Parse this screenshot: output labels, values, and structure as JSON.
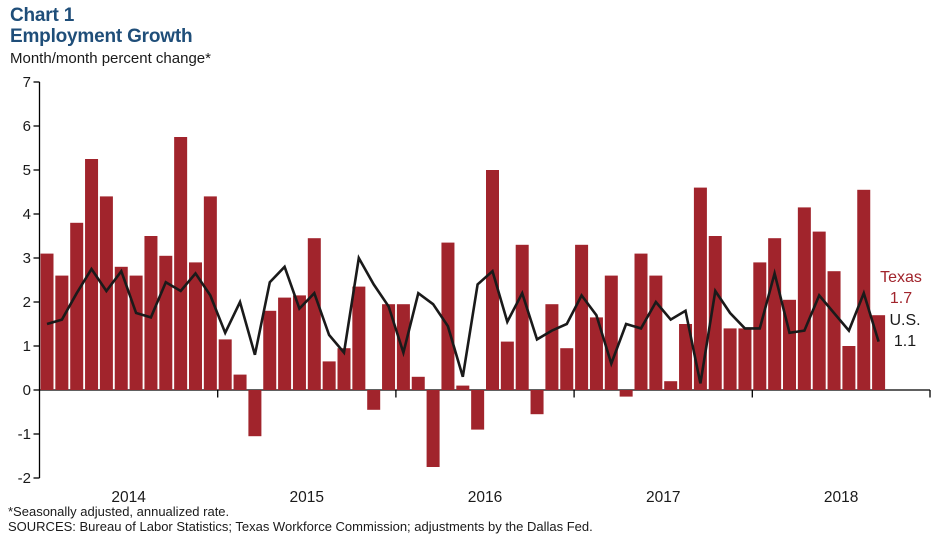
{
  "header": {
    "chart_label": "Chart 1",
    "title": "Employment Growth",
    "subtitle": "Month/month percent change*"
  },
  "colors": {
    "title_blue": "#1F4E79",
    "texas_red": "#A1242C",
    "us_black": "#1A1A1A",
    "axis": "#000000"
  },
  "chart_data": {
    "type": "bar",
    "note": "bars = Texas monthly annualized % change; black line = U.S.",
    "months": [
      "2014-01",
      "2014-02",
      "2014-03",
      "2014-04",
      "2014-05",
      "2014-06",
      "2014-07",
      "2014-08",
      "2014-09",
      "2014-10",
      "2014-11",
      "2014-12",
      "2015-01",
      "2015-02",
      "2015-03",
      "2015-04",
      "2015-05",
      "2015-06",
      "2015-07",
      "2015-08",
      "2015-09",
      "2015-10",
      "2015-11",
      "2015-12",
      "2016-01",
      "2016-02",
      "2016-03",
      "2016-04",
      "2016-05",
      "2016-06",
      "2016-07",
      "2016-08",
      "2016-09",
      "2016-10",
      "2016-11",
      "2016-12",
      "2017-01",
      "2017-02",
      "2017-03",
      "2017-04",
      "2017-05",
      "2017-06",
      "2017-07",
      "2017-08",
      "2017-09",
      "2017-10",
      "2017-11",
      "2017-12",
      "2018-01",
      "2018-02",
      "2018-03",
      "2018-04",
      "2018-05",
      "2018-06",
      "2018-07",
      "2018-08",
      "2018-09"
    ],
    "series": [
      {
        "name": "Texas",
        "type": "bar",
        "color": "#A1242C",
        "values": [
          3.1,
          2.6,
          3.8,
          5.25,
          4.4,
          2.8,
          2.6,
          3.5,
          3.05,
          5.75,
          2.9,
          4.4,
          1.15,
          0.35,
          -1.05,
          1.8,
          2.1,
          2.15,
          3.45,
          0.65,
          0.95,
          2.35,
          -0.45,
          1.95,
          1.95,
          0.3,
          -1.75,
          3.35,
          0.1,
          -0.9,
          5.0,
          1.1,
          3.3,
          -0.55,
          1.95,
          0.95,
          3.3,
          1.65,
          2.6,
          -0.15,
          3.1,
          2.6,
          0.2,
          1.5,
          4.6,
          3.5,
          1.4,
          1.4,
          2.9,
          3.45,
          2.05,
          4.15,
          3.6,
          2.7,
          1.0,
          4.55,
          1.7
        ]
      },
      {
        "name": "U.S.",
        "type": "line",
        "color": "#1A1A1A",
        "values": [
          1.5,
          1.6,
          2.2,
          2.75,
          2.25,
          2.7,
          1.75,
          1.65,
          2.45,
          2.25,
          2.65,
          2.15,
          1.3,
          2.0,
          0.8,
          2.45,
          2.8,
          1.85,
          2.2,
          1.25,
          0.85,
          3.0,
          2.4,
          1.9,
          0.85,
          2.2,
          1.95,
          1.45,
          0.3,
          2.4,
          2.7,
          1.55,
          2.2,
          1.15,
          1.35,
          1.5,
          2.15,
          1.7,
          0.6,
          1.5,
          1.4,
          2.0,
          1.6,
          1.8,
          0.15,
          2.25,
          1.75,
          1.4,
          1.4,
          2.65,
          1.3,
          1.35,
          2.15,
          1.75,
          1.35,
          2.2,
          1.1
        ]
      }
    ],
    "xlabel": "",
    "ylabel": "",
    "ylim": [
      -2,
      7
    ],
    "ytick_step": 1,
    "yticks": [
      "7",
      "6",
      "5",
      "4",
      "3",
      "2",
      "1",
      "0",
      "-1",
      "-2"
    ],
    "x_tick_labels": [
      "2014",
      "2015",
      "2016",
      "2017",
      "2018"
    ],
    "grid": "off",
    "legend_position": "right-annotations",
    "annotations": {
      "texas": {
        "label": "Texas",
        "value": "1.7"
      },
      "us": {
        "label": "U.S.",
        "value": "1.1"
      }
    }
  },
  "footer": {
    "note": "*Seasonally adjusted, annualized rate.",
    "sources": "SOURCES: Bureau of Labor Statistics; Texas Workforce Commission; adjustments by the Dallas Fed."
  }
}
